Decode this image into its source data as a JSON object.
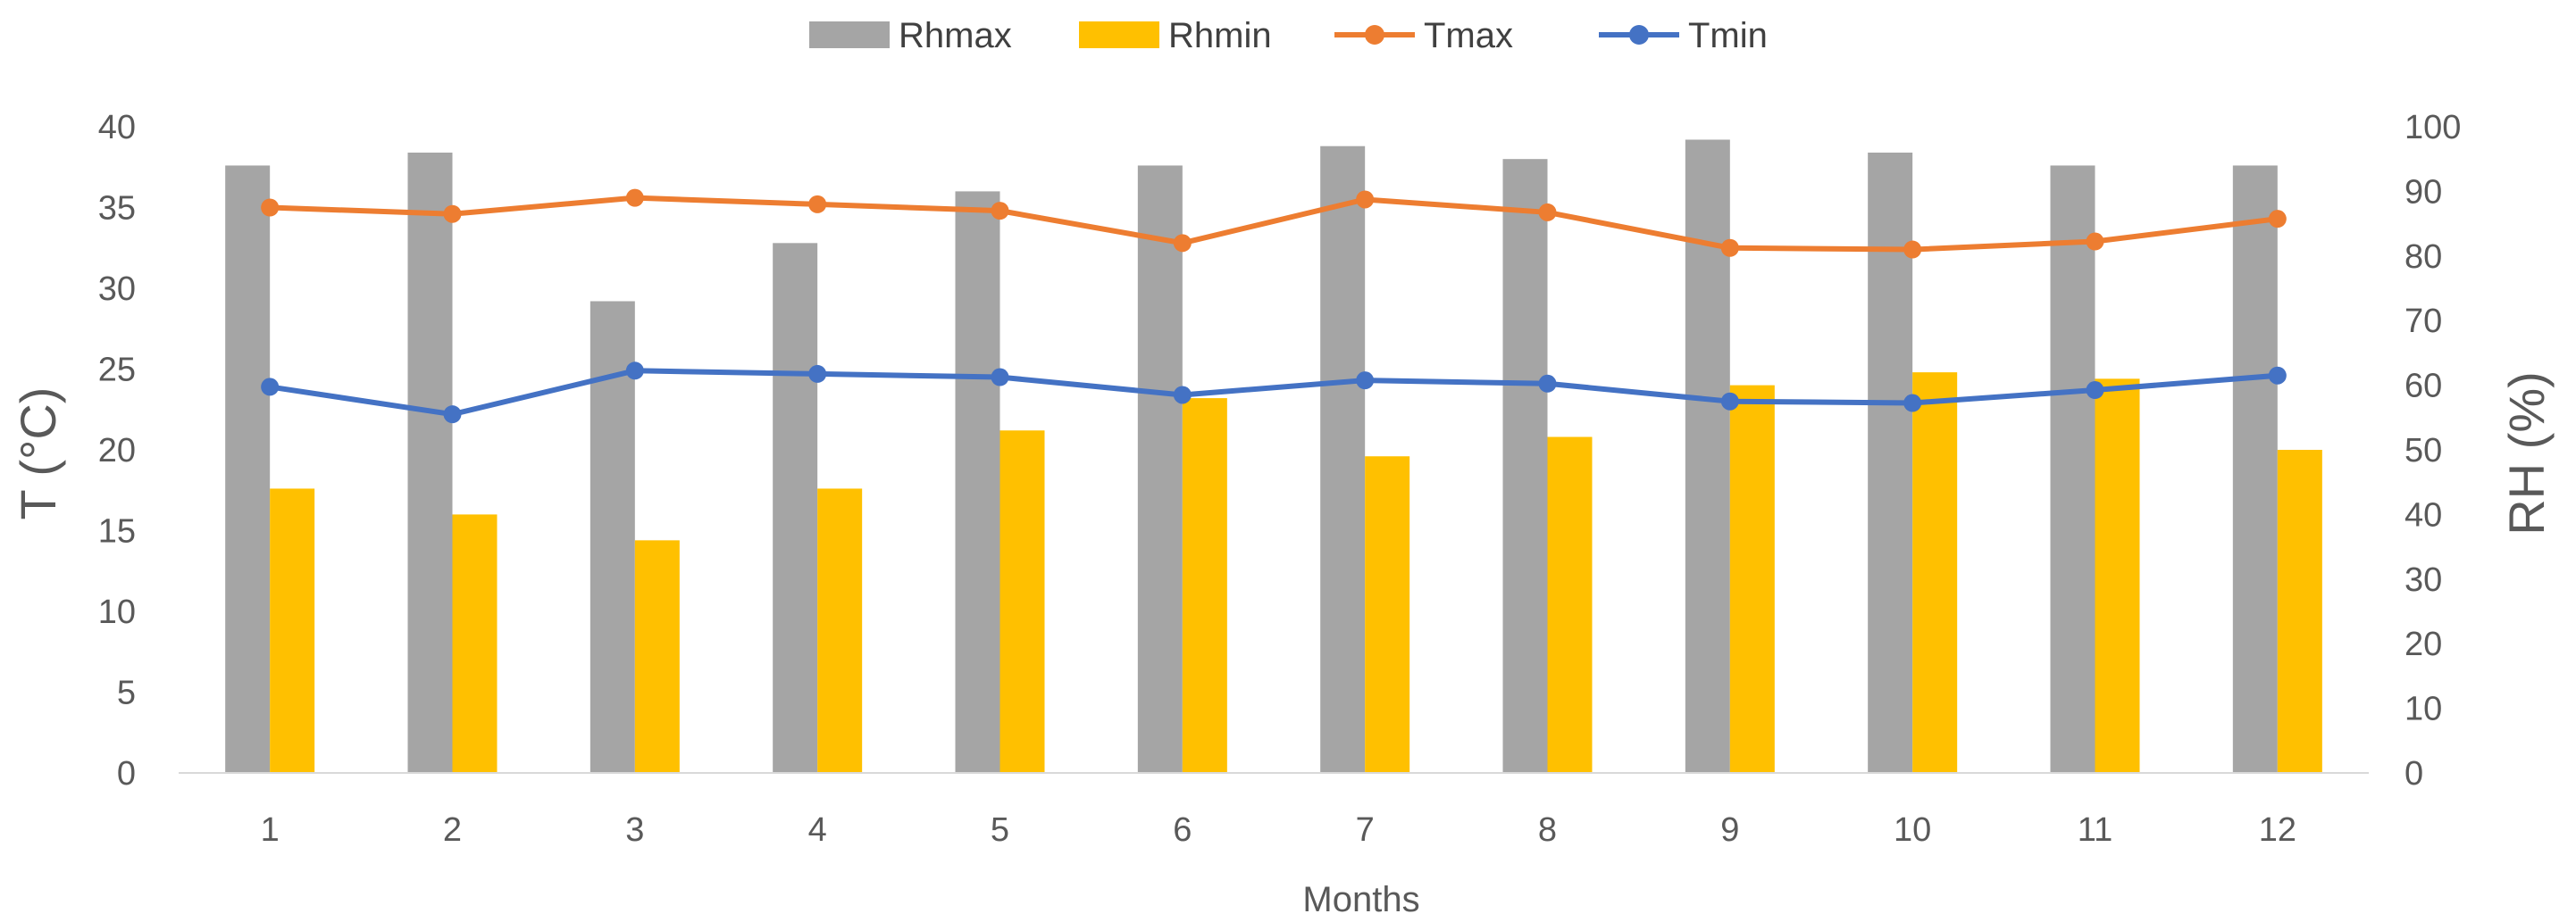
{
  "chart_data": {
    "type": "bar",
    "title": "",
    "xlabel": "Months",
    "ylabel": "T (°C)",
    "y2label": "RH (%)",
    "ylim": [
      0,
      40
    ],
    "y2lim": [
      0,
      100
    ],
    "yticks": [
      "0",
      "5",
      "10",
      "15",
      "20",
      "25",
      "30",
      "35",
      "40"
    ],
    "y2ticks": [
      "0",
      "10",
      "20",
      "30",
      "40",
      "50",
      "60",
      "70",
      "80",
      "90",
      "100"
    ],
    "categories": [
      "1",
      "2",
      "3",
      "4",
      "5",
      "6",
      "7",
      "8",
      "9",
      "10",
      "11",
      "12"
    ],
    "legend_position": "top-center",
    "grid": false,
    "series": [
      {
        "name": "Rhmax",
        "kind": "bar",
        "axis": "right",
        "color": "#A5A5A5",
        "values": [
          94,
          96,
          73,
          82,
          90,
          94,
          97,
          95,
          98,
          96,
          94,
          94
        ]
      },
      {
        "name": "Rhmin",
        "kind": "bar",
        "axis": "right",
        "color": "#FFC000",
        "values": [
          44,
          40,
          36,
          44,
          53,
          58,
          49,
          52,
          60,
          62,
          61,
          50
        ]
      },
      {
        "name": "Tmax",
        "kind": "line",
        "axis": "left",
        "color": "#ED7D31",
        "values": [
          35.0,
          34.6,
          35.6,
          35.2,
          34.8,
          32.8,
          35.5,
          34.7,
          32.5,
          32.4,
          32.9,
          34.3
        ]
      },
      {
        "name": "Tmin",
        "kind": "line",
        "axis": "left",
        "color": "#4472C4",
        "values": [
          23.9,
          22.2,
          24.9,
          24.7,
          24.5,
          23.4,
          24.3,
          24.1,
          23.0,
          22.9,
          23.7,
          24.6
        ]
      }
    ]
  }
}
